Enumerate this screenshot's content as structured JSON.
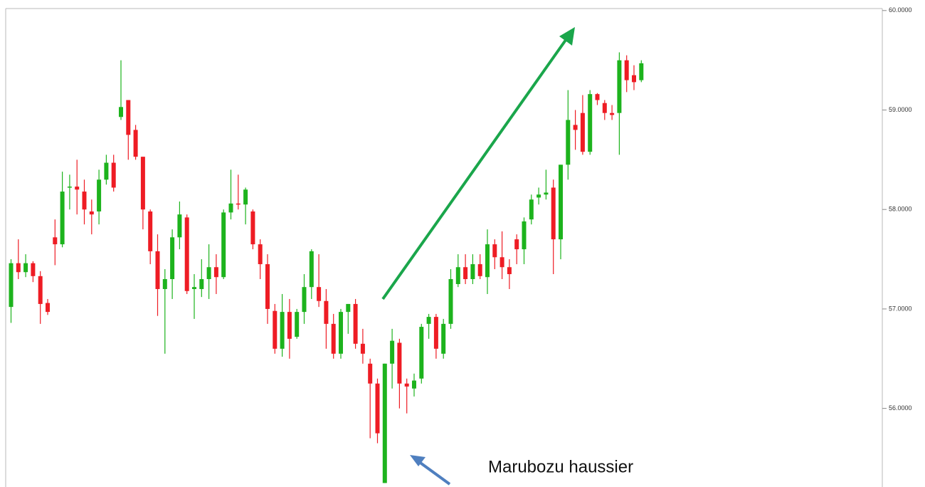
{
  "chart_data": {
    "type": "candlestick",
    "annotation": "Marubozu haussier",
    "up_color": "#1db31d",
    "down_color": "#ee1c24",
    "ylim": [
      55.21,
      60.02
    ],
    "yticks": [
      {
        "value": 56,
        "label": "56.0000"
      },
      {
        "value": 57,
        "label": "57.0000"
      },
      {
        "value": 58,
        "label": "58.0000"
      },
      {
        "value": 59,
        "label": "59.0000"
      },
      {
        "value": 60,
        "label": "60.0000"
      }
    ],
    "open": [
      57.02,
      57.46,
      57.37,
      57.46,
      57.33,
      57.06,
      57.72,
      57.65,
      58.22,
      58.23,
      58.18,
      57.98,
      57.98,
      58.3,
      58.47,
      58.93,
      59.1,
      58.8,
      58.53,
      57.98,
      57.58,
      57.2,
      57.3,
      57.72,
      57.92,
      57.2,
      57.2,
      57.3,
      57.42,
      57.32,
      57.97,
      58.06,
      58.05,
      57.98,
      57.65,
      57.45,
      56.98,
      56.6,
      56.97,
      56.72,
      56.97,
      57.22,
      57.22,
      57.08,
      56.85,
      56.55,
      56.97,
      57.05,
      56.65,
      56.45,
      56.25,
      55.25,
      56.45,
      56.66,
      56.25,
      56.2,
      56.3,
      56.85,
      56.92,
      56.55,
      56.85,
      57.25,
      57.42,
      57.3,
      57.45,
      57.32,
      57.65,
      57.52,
      57.42,
      57.7,
      57.6,
      57.9,
      58.12,
      58.15,
      58.22,
      57.7,
      58.45,
      58.85,
      58.97,
      58.58,
      59.16,
      59.07,
      58.97,
      58.97,
      59.5,
      59.35,
      59.3
    ],
    "high": [
      57.5,
      57.7,
      57.55,
      57.48,
      57.38,
      57.1,
      57.9,
      58.38,
      58.35,
      58.5,
      58.3,
      58.1,
      58.4,
      58.55,
      58.55,
      59.5,
      59.1,
      58.85,
      58.53,
      58.0,
      57.75,
      57.4,
      57.8,
      58.08,
      57.95,
      57.35,
      57.5,
      57.65,
      57.55,
      58.0,
      58.4,
      58.35,
      58.22,
      58.0,
      57.7,
      57.55,
      57.05,
      57.15,
      57.1,
      57.0,
      57.35,
      57.6,
      57.55,
      57.2,
      56.95,
      57.0,
      57.05,
      57.1,
      56.8,
      56.5,
      56.3,
      56.45,
      56.8,
      56.7,
      56.3,
      56.35,
      56.85,
      56.95,
      56.95,
      56.9,
      57.4,
      57.55,
      57.55,
      57.55,
      57.55,
      57.8,
      57.7,
      57.78,
      57.5,
      57.75,
      57.92,
      58.15,
      58.22,
      58.4,
      58.3,
      58.45,
      59.2,
      59.0,
      59.15,
      59.2,
      59.17,
      59.1,
      59.05,
      59.58,
      59.55,
      59.45,
      59.5
    ],
    "low": [
      56.86,
      57.3,
      57.32,
      57.27,
      56.85,
      56.94,
      57.44,
      57.62,
      58.0,
      57.95,
      57.85,
      57.75,
      57.85,
      58.25,
      58.18,
      58.9,
      58.5,
      58.5,
      57.8,
      57.45,
      56.93,
      56.55,
      57.1,
      57.6,
      57.15,
      56.9,
      57.12,
      57.1,
      57.15,
      57.3,
      57.9,
      58.0,
      57.85,
      57.6,
      57.3,
      56.85,
      56.55,
      56.52,
      56.5,
      56.7,
      56.85,
      57.1,
      57.02,
      56.6,
      56.5,
      56.5,
      56.75,
      56.6,
      56.45,
      55.7,
      55.65,
      55.25,
      56.2,
      56.0,
      55.95,
      56.12,
      56.25,
      56.7,
      56.5,
      56.5,
      56.8,
      57.22,
      57.25,
      57.25,
      57.3,
      57.15,
      57.4,
      57.3,
      57.2,
      57.45,
      57.45,
      57.85,
      58.05,
      58.1,
      57.35,
      57.5,
      58.3,
      58.6,
      58.55,
      58.55,
      59.05,
      58.9,
      58.9,
      58.55,
      59.18,
      59.2,
      59.28
    ],
    "close": [
      57.46,
      57.37,
      57.46,
      57.33,
      57.05,
      56.97,
      57.65,
      58.18,
      58.23,
      58.2,
      58.0,
      57.95,
      58.3,
      58.47,
      58.22,
      59.03,
      58.75,
      58.53,
      58.0,
      57.58,
      57.2,
      57.3,
      57.72,
      57.95,
      57.18,
      57.22,
      57.3,
      57.42,
      57.32,
      57.97,
      58.06,
      58.05,
      58.2,
      57.65,
      57.45,
      57.0,
      56.6,
      56.97,
      56.7,
      56.97,
      57.22,
      57.58,
      57.08,
      56.85,
      56.55,
      56.97,
      57.05,
      56.65,
      56.55,
      56.25,
      55.75,
      56.45,
      56.68,
      56.25,
      56.22,
      56.28,
      56.82,
      56.92,
      56.6,
      56.85,
      57.3,
      57.42,
      57.3,
      57.45,
      57.33,
      57.65,
      57.52,
      57.42,
      57.35,
      57.6,
      57.88,
      58.1,
      58.15,
      58.17,
      57.7,
      58.45,
      58.9,
      58.8,
      58.58,
      59.16,
      59.1,
      58.97,
      58.95,
      59.5,
      59.3,
      59.28,
      59.47
    ]
  }
}
